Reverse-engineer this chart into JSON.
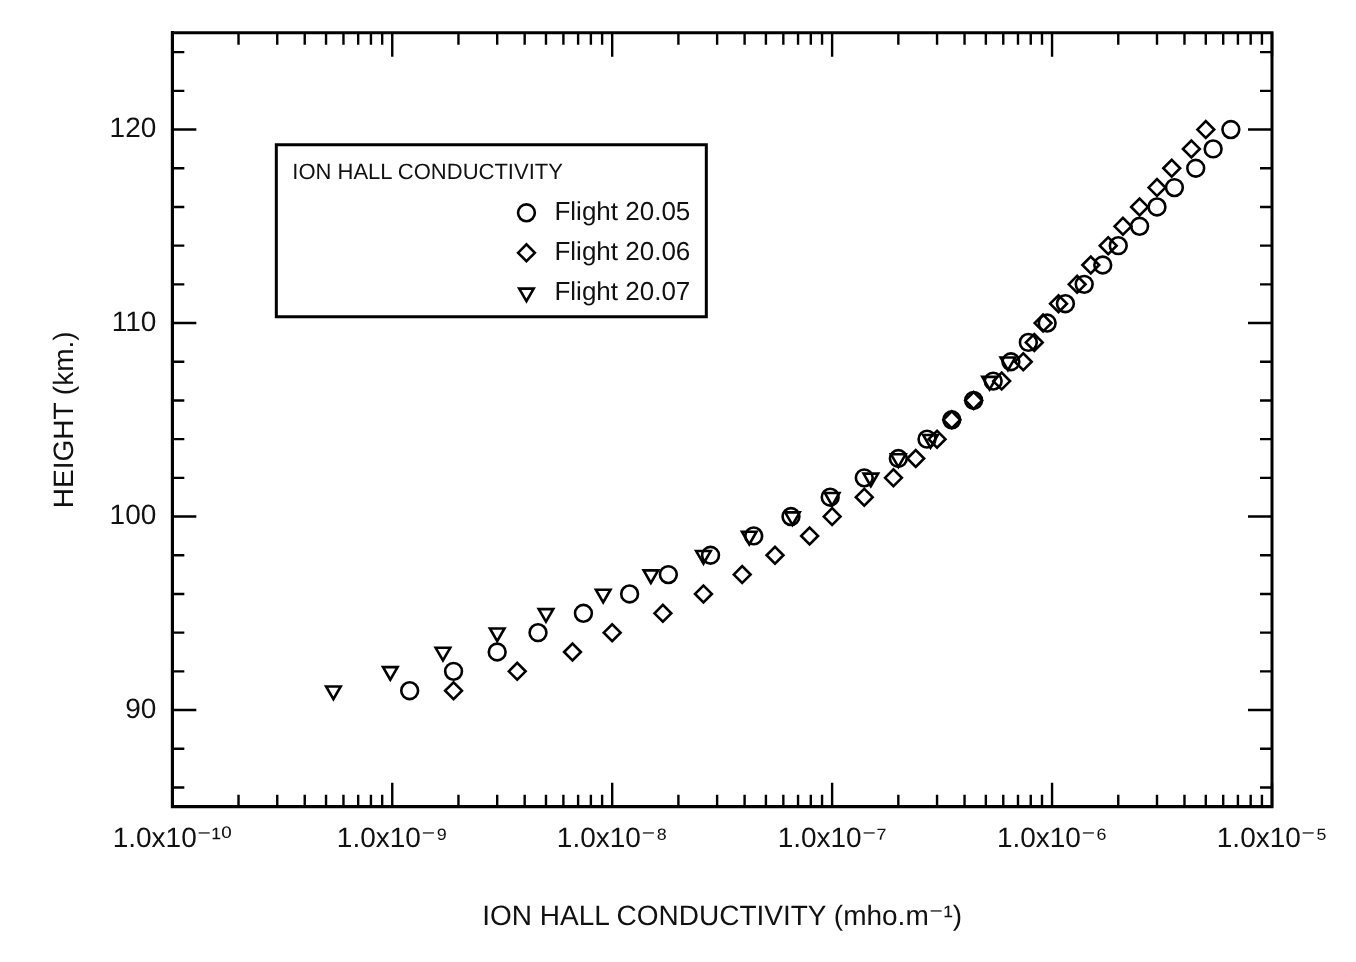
{
  "chart_data": {
    "type": "scatter",
    "xlabel": "ION HALL CONDUCTIVITY (mho.m⁻¹)",
    "ylabel": "HEIGHT (km.)",
    "legend_title": "ION HALL CONDUCTIVITY",
    "legend": "top left",
    "grid": false,
    "log": "x",
    "xlim": [
      1e-10,
      1e-05
    ],
    "xticks": [
      {
        "value": 1e-10,
        "label": "1.0x10⁻¹⁰"
      },
      {
        "value": 2e-10,
        "label": null
      },
      {
        "value": 3e-10,
        "label": null
      },
      {
        "value": 4e-10,
        "label": null
      },
      {
        "value": 5e-10,
        "label": null
      },
      {
        "value": 6e-10,
        "label": null
      },
      {
        "value": 7e-10,
        "label": null
      },
      {
        "value": 8e-10,
        "label": null
      },
      {
        "value": 9e-10,
        "label": null
      },
      {
        "value": 1e-09,
        "label": "1.0x10⁻⁹"
      },
      {
        "value": 2e-09,
        "label": null
      },
      {
        "value": 3e-09,
        "label": null
      },
      {
        "value": 4e-09,
        "label": null
      },
      {
        "value": 5e-09,
        "label": null
      },
      {
        "value": 6e-09,
        "label": null
      },
      {
        "value": 7e-09,
        "label": null
      },
      {
        "value": 8e-09,
        "label": null
      },
      {
        "value": 9e-09,
        "label": null
      },
      {
        "value": 1e-08,
        "label": "1.0x10⁻⁸"
      },
      {
        "value": 2e-08,
        "label": null
      },
      {
        "value": 3e-08,
        "label": null
      },
      {
        "value": 4e-08,
        "label": null
      },
      {
        "value": 5e-08,
        "label": null
      },
      {
        "value": 6e-08,
        "label": null
      },
      {
        "value": 7e-08,
        "label": null
      },
      {
        "value": 8e-08,
        "label": null
      },
      {
        "value": 9e-08,
        "label": null
      },
      {
        "value": 1e-07,
        "label": "1.0x10⁻⁷"
      },
      {
        "value": 2e-07,
        "label": null
      },
      {
        "value": 3e-07,
        "label": null
      },
      {
        "value": 4e-07,
        "label": null
      },
      {
        "value": 5e-07,
        "label": null
      },
      {
        "value": 6e-07,
        "label": null
      },
      {
        "value": 7e-07,
        "label": null
      },
      {
        "value": 8e-07,
        "label": null
      },
      {
        "value": 9e-07,
        "label": null
      },
      {
        "value": 1e-06,
        "label": "1.0x10⁻⁶"
      },
      {
        "value": 2e-06,
        "label": null
      },
      {
        "value": 3e-06,
        "label": null
      },
      {
        "value": 4e-06,
        "label": null
      },
      {
        "value": 5e-06,
        "label": null
      },
      {
        "value": 6e-06,
        "label": null
      },
      {
        "value": 7e-06,
        "label": null
      },
      {
        "value": 8e-06,
        "label": null
      },
      {
        "value": 9e-06,
        "label": null
      },
      {
        "value": 1e-05,
        "label": "1.0x10⁻⁵"
      }
    ],
    "ylim": [
      85,
      125
    ],
    "yticks": [
      {
        "value": 86,
        "label": null
      },
      {
        "value": 88,
        "label": null
      },
      90,
      {
        "value": 92,
        "label": null
      },
      {
        "value": 94,
        "label": null
      },
      {
        "value": 96,
        "label": null
      },
      {
        "value": 98,
        "label": null
      },
      100,
      {
        "value": 102,
        "label": null
      },
      {
        "value": 104,
        "label": null
      },
      {
        "value": 106,
        "label": null
      },
      {
        "value": 108,
        "label": null
      },
      110,
      {
        "value": 112,
        "label": null
      },
      {
        "value": 114,
        "label": null
      },
      {
        "value": 116,
        "label": null
      },
      {
        "value": 118,
        "label": null
      },
      120,
      {
        "value": 122,
        "label": null
      },
      {
        "value": 124,
        "label": null
      }
    ],
    "series": [
      {
        "name": "Flight 20.05",
        "color": "#000000",
        "marker": "circle",
        "x": [
          1.2e-09,
          1.9e-09,
          3e-09,
          4.6e-09,
          7.4e-09,
          1.2e-08,
          1.8e-08,
          2.8e-08,
          4.4e-08,
          6.5e-08,
          9.8e-08,
          1.4e-07,
          2e-07,
          2.7e-07,
          3.5e-07,
          4.4e-07,
          5.4e-07,
          6.5e-07,
          7.8e-07,
          9.5e-07,
          1.15e-06,
          1.4e-06,
          1.7e-06,
          2e-06,
          2.5e-06,
          3e-06,
          3.6e-06,
          4.5e-06,
          5.4e-06,
          6.5e-06
        ],
        "values": [
          91,
          92,
          93,
          94,
          95,
          96,
          97,
          98,
          99,
          100,
          101,
          102,
          103,
          104,
          105,
          106,
          107,
          108,
          109,
          110,
          111,
          112,
          113,
          114,
          115,
          116,
          117,
          118,
          119,
          120
        ]
      },
      {
        "name": "Flight 20.06",
        "color": "#000000",
        "marker": "diamond",
        "x": [
          1.9e-09,
          3.7e-09,
          6.6e-09,
          1e-08,
          1.7e-08,
          2.6e-08,
          3.9e-08,
          5.5e-08,
          7.9e-08,
          1e-07,
          1.4e-07,
          1.9e-07,
          2.4e-07,
          3e-07,
          3.5e-07,
          4.4e-07,
          5.9e-07,
          7.4e-07,
          8.3e-07,
          9.1e-07,
          1.07e-06,
          1.3e-06,
          1.5e-06,
          1.8e-06,
          2.1e-06,
          2.5e-06,
          3e-06,
          3.5e-06,
          4.3e-06,
          5e-06
        ],
        "values": [
          91,
          92,
          93,
          94,
          95,
          96,
          97,
          98,
          99,
          100,
          101,
          102,
          103,
          104,
          105,
          106,
          107,
          108,
          109,
          110,
          111,
          112,
          113,
          114,
          115,
          116,
          117,
          118,
          119,
          120
        ]
      },
      {
        "name": "Flight 20.07",
        "color": "#000000",
        "marker": "triangle",
        "x": [
          5.4e-10,
          9.8e-10,
          1.7e-09,
          3e-09,
          5e-09,
          9.1e-09,
          1.5e-08,
          2.6e-08,
          4.2e-08,
          6.6e-08,
          1e-07,
          1.5e-07,
          2e-07,
          2.8e-07,
          3.5e-07,
          4.4e-07,
          5.2e-07,
          6.3e-07
        ],
        "values": [
          91,
          92,
          93,
          94,
          95,
          96,
          97,
          98,
          99,
          100,
          101,
          102,
          103,
          104,
          null,
          null,
          107,
          108
        ]
      }
    ]
  }
}
